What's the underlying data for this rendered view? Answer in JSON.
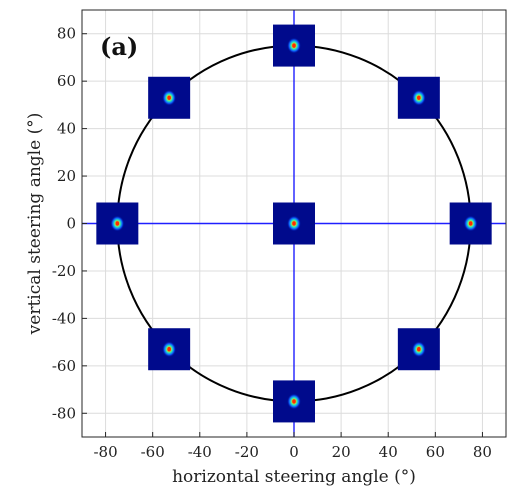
{
  "chart_data": {
    "type": "scatter",
    "panel_label": "(a)",
    "xlabel": "horizontal steering angle (°)",
    "ylabel": "vertical steering angle (°)",
    "xlim": [
      -90,
      90
    ],
    "ylim": [
      -90,
      90
    ],
    "xticks": [
      -80,
      -60,
      -40,
      -20,
      0,
      20,
      40,
      60,
      80
    ],
    "yticks": [
      -80,
      -60,
      -40,
      -20,
      0,
      20,
      40,
      60,
      80
    ],
    "grid": true,
    "reference_circle": {
      "radius": 75,
      "color": "#000000"
    },
    "reference_lines": {
      "x": 0,
      "y": 0,
      "color": "#1f1fff"
    },
    "inset_colors": {
      "background": "#000a8c",
      "spot_core": "#ff2a00",
      "spot_mid": "#ffe600",
      "spot_outer": "#14e6c8"
    },
    "points": [
      {
        "x": 0,
        "y": 0
      },
      {
        "x": 0,
        "y": 75
      },
      {
        "x": 53,
        "y": 53
      },
      {
        "x": 75,
        "y": 0
      },
      {
        "x": 53,
        "y": -53
      },
      {
        "x": 0,
        "y": -75
      },
      {
        "x": -53,
        "y": -53
      },
      {
        "x": -75,
        "y": 0
      },
      {
        "x": -53,
        "y": 53
      }
    ]
  }
}
